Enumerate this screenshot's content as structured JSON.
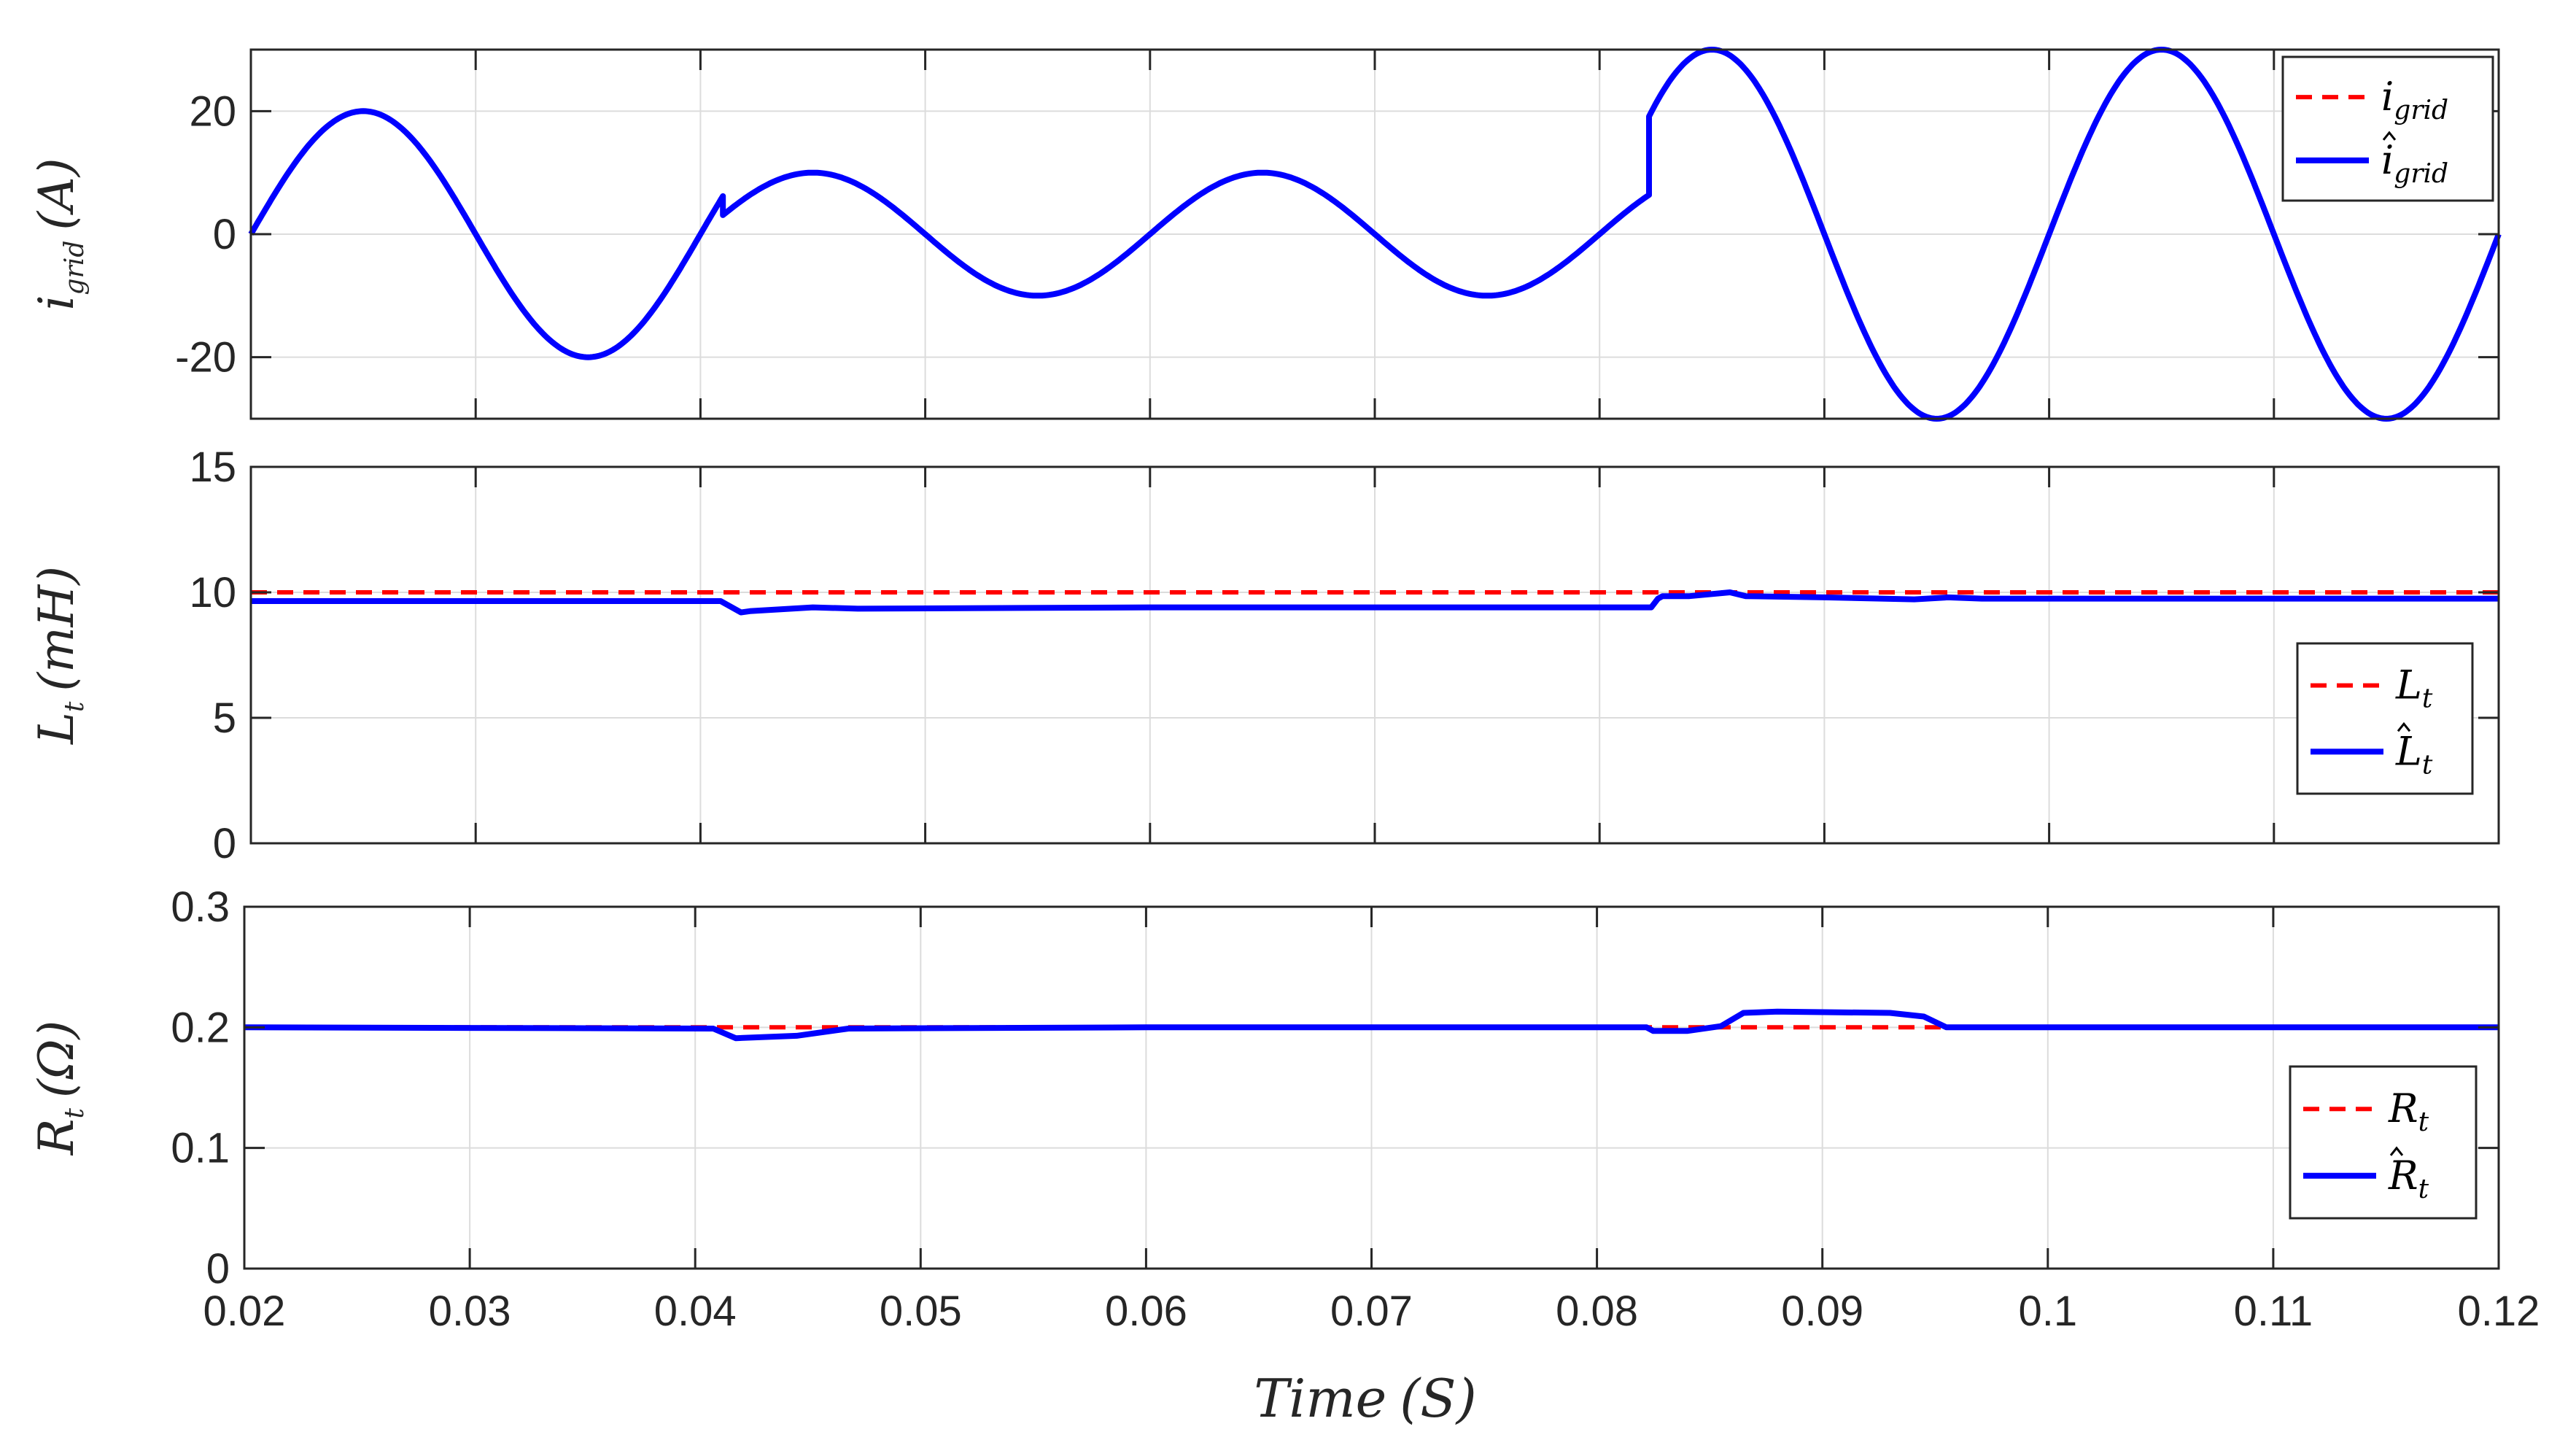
{
  "colors": {
    "actual": "#ff0000",
    "estimate": "#0000ff",
    "grid": "#dcdcdc",
    "axis": "#262626"
  },
  "chart_data": [
    {
      "id": "current",
      "type": "line",
      "ylabel_main": "i",
      "ylabel_sub": "grid",
      "ylabel_unit": "(A)",
      "xlim": [
        0.02,
        0.12
      ],
      "ylim": [
        -30,
        30
      ],
      "yticks": [
        -20,
        0,
        20
      ],
      "ytick_labels": [
        "-20",
        "0",
        "20"
      ],
      "grid": true,
      "legend_position": "top-right",
      "legend": [
        {
          "main": "i",
          "sub": "grid",
          "hat": false,
          "style": "dashed"
        },
        {
          "main": "i",
          "sub": "grid",
          "hat": true,
          "style": "solid"
        }
      ],
      "series": [
        {
          "role": "actual",
          "style": "dashed",
          "model": "sine",
          "segments": [
            [
              0.02,
              0.041,
              20
            ],
            [
              0.041,
              0.0822,
              10
            ],
            [
              0.0822,
              0.12,
              30
            ]
          ],
          "frequency": 50
        },
        {
          "role": "estimate",
          "style": "solid",
          "model": "sine",
          "segments": [
            [
              0.02,
              0.041,
              20
            ],
            [
              0.041,
              0.0822,
              10
            ],
            [
              0.0822,
              0.12,
              30
            ]
          ],
          "frequency": 50
        }
      ]
    },
    {
      "id": "inductance",
      "type": "line",
      "ylabel_main": "L",
      "ylabel_sub": "t",
      "ylabel_unit": "(mH)",
      "xlim": [
        0.02,
        0.12
      ],
      "ylim": [
        0,
        15
      ],
      "yticks": [
        0,
        5,
        10,
        15
      ],
      "ytick_labels": [
        "0",
        "5",
        "10",
        "15"
      ],
      "grid": true,
      "legend_position": "middle-right",
      "legend": [
        {
          "main": "L",
          "sub": "t",
          "hat": false,
          "style": "dashed"
        },
        {
          "main": "L",
          "sub": "t",
          "hat": true,
          "style": "solid"
        }
      ],
      "series": [
        {
          "role": "actual",
          "style": "dashed",
          "x": [
            0.02,
            0.12
          ],
          "y": [
            10,
            10
          ]
        },
        {
          "role": "estimate",
          "style": "solid",
          "x": [
            0.02,
            0.0409,
            0.0418,
            0.0422,
            0.045,
            0.047,
            0.06,
            0.075,
            0.0823,
            0.0826,
            0.0828,
            0.084,
            0.0858,
            0.0865,
            0.09,
            0.094,
            0.0955,
            0.097,
            0.12
          ],
          "y": [
            9.65,
            9.65,
            9.2,
            9.25,
            9.4,
            9.35,
            9.4,
            9.4,
            9.4,
            9.75,
            9.85,
            9.85,
            10.0,
            9.85,
            9.8,
            9.72,
            9.8,
            9.75,
            9.75
          ]
        }
      ]
    },
    {
      "id": "resistance",
      "type": "line",
      "ylabel_main": "R",
      "ylabel_sub": "t",
      "ylabel_unit": "(Ω)",
      "xlim": [
        0.02,
        0.12
      ],
      "ylim": [
        0,
        0.3
      ],
      "yticks": [
        0,
        0.1,
        0.2,
        0.3
      ],
      "ytick_labels": [
        "0",
        "0.1",
        "0.2",
        "0.3"
      ],
      "grid": true,
      "legend_position": "middle-right",
      "legend": [
        {
          "main": "R",
          "sub": "t",
          "hat": false,
          "style": "dashed"
        },
        {
          "main": "R",
          "sub": "t",
          "hat": true,
          "style": "solid"
        }
      ],
      "series": [
        {
          "role": "actual",
          "style": "dashed",
          "x": [
            0.02,
            0.12
          ],
          "y": [
            0.2,
            0.2
          ]
        },
        {
          "role": "estimate",
          "style": "solid",
          "x": [
            0.02,
            0.0408,
            0.0418,
            0.0445,
            0.0468,
            0.06,
            0.0822,
            0.0825,
            0.084,
            0.0855,
            0.0865,
            0.088,
            0.093,
            0.0945,
            0.0955,
            0.097,
            0.12
          ],
          "y": [
            0.2,
            0.199,
            0.191,
            0.193,
            0.199,
            0.2,
            0.2,
            0.197,
            0.197,
            0.201,
            0.212,
            0.213,
            0.212,
            0.209,
            0.2,
            0.2,
            0.2
          ]
        }
      ]
    }
  ],
  "x_axis": {
    "ticks": [
      0.02,
      0.03,
      0.04,
      0.05,
      0.06,
      0.07,
      0.08,
      0.09,
      0.1,
      0.11,
      0.12
    ],
    "tick_labels": [
      "0.02",
      "0.03",
      "0.04",
      "0.05",
      "0.06",
      "0.07",
      "0.08",
      "0.09",
      "0.1",
      "0.11",
      "0.12"
    ],
    "label_main": "Time",
    "label_unit": "(S)"
  }
}
